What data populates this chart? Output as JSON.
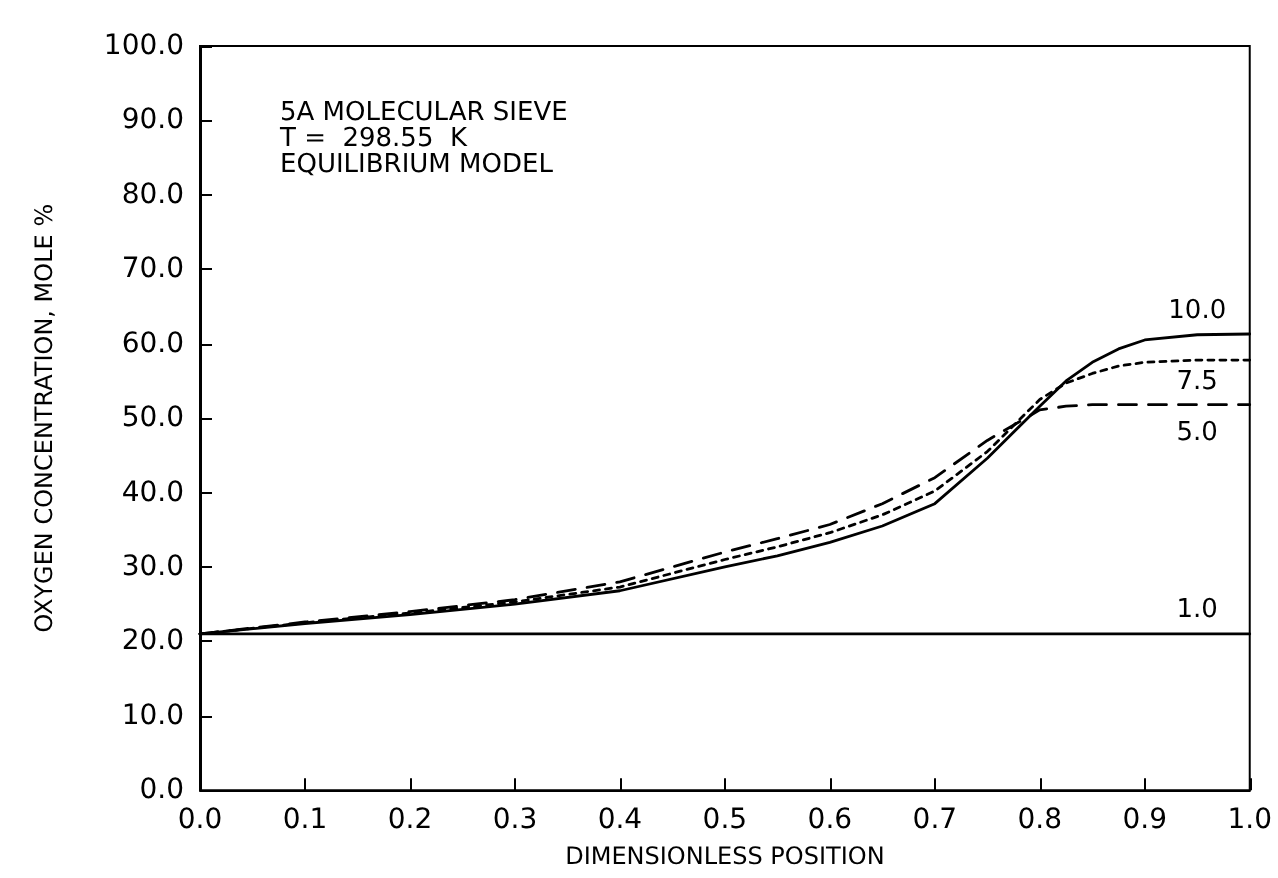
{
  "chart_data": {
    "type": "line",
    "xlabel": "DIMENSIONLESS POSITION",
    "ylabel": "OXYGEN CONCENTRATION, MOLE %",
    "annotations": [
      "5A MOLECULAR SIEVE",
      "T =  298.55  K",
      "EQUILIBRIUM MODEL"
    ],
    "x": [
      0,
      0.1,
      0.2,
      0.3,
      0.4,
      0.5,
      0.55,
      0.6,
      0.65,
      0.7,
      0.75,
      0.8,
      0.825,
      0.85,
      0.875,
      0.9,
      0.95,
      1.0
    ],
    "series": [
      {
        "name": "10.0",
        "color": "#000000",
        "line_style": "solid",
        "values": [
          21,
          22.4,
          23.6,
          25,
          26.8,
          30,
          31.5,
          33.3,
          35.5,
          38.5,
          44.6,
          51.6,
          55,
          57.5,
          59.3,
          60.5,
          61.2,
          61.3
        ]
      },
      {
        "name": "7.5",
        "color": "#000000",
        "line_style": "dotted",
        "values": [
          21,
          22.5,
          23.8,
          25.3,
          27.3,
          31,
          32.7,
          34.6,
          37,
          40.2,
          45.5,
          52.5,
          54.7,
          56,
          57,
          57.5,
          57.8,
          57.8
        ]
      },
      {
        "name": "5.0",
        "color": "#000000",
        "line_style": "dashed",
        "values": [
          21,
          22.6,
          24,
          25.6,
          28,
          32,
          33.8,
          35.7,
          38.5,
          42,
          47,
          51.1,
          51.6,
          51.8,
          51.8,
          51.8,
          51.8,
          51.8
        ]
      },
      {
        "name": "1.0",
        "color": "#000000",
        "line_style": "solid",
        "values": [
          21,
          21,
          21,
          21,
          21,
          21,
          21,
          21,
          21,
          21,
          21,
          21,
          21,
          21,
          21,
          21,
          21,
          21
        ]
      }
    ],
    "xlim": [
      0,
      1
    ],
    "ylim": [
      0,
      100
    ],
    "xticks": [
      {
        "value": 0,
        "label": "0.0"
      },
      {
        "value": 0.1,
        "label": "0.1"
      },
      {
        "value": 0.2,
        "label": "0.2"
      },
      {
        "value": 0.3,
        "label": "0.3"
      },
      {
        "value": 0.4,
        "label": "0.4"
      },
      {
        "value": 0.5,
        "label": "0.5"
      },
      {
        "value": 0.6,
        "label": "0.6"
      },
      {
        "value": 0.7,
        "label": "0.7"
      },
      {
        "value": 0.8,
        "label": "0.8"
      },
      {
        "value": 0.9,
        "label": "0.9"
      },
      {
        "value": 1,
        "label": "1.0"
      }
    ],
    "yticks": [
      {
        "value": 0,
        "label": "0.0"
      },
      {
        "value": 10,
        "label": "10.0"
      },
      {
        "value": 20,
        "label": "20.0"
      },
      {
        "value": 30,
        "label": "30.0"
      },
      {
        "value": 40,
        "label": "40.0"
      },
      {
        "value": 50,
        "label": "50.0"
      },
      {
        "value": 60,
        "label": "60.0"
      },
      {
        "value": 70,
        "label": "70.0"
      },
      {
        "value": 80,
        "label": "80.0"
      },
      {
        "value": 90,
        "label": "90.0"
      },
      {
        "value": 100,
        "label": "100.0"
      }
    ],
    "grid": false,
    "legend": false,
    "marker": "none"
  }
}
